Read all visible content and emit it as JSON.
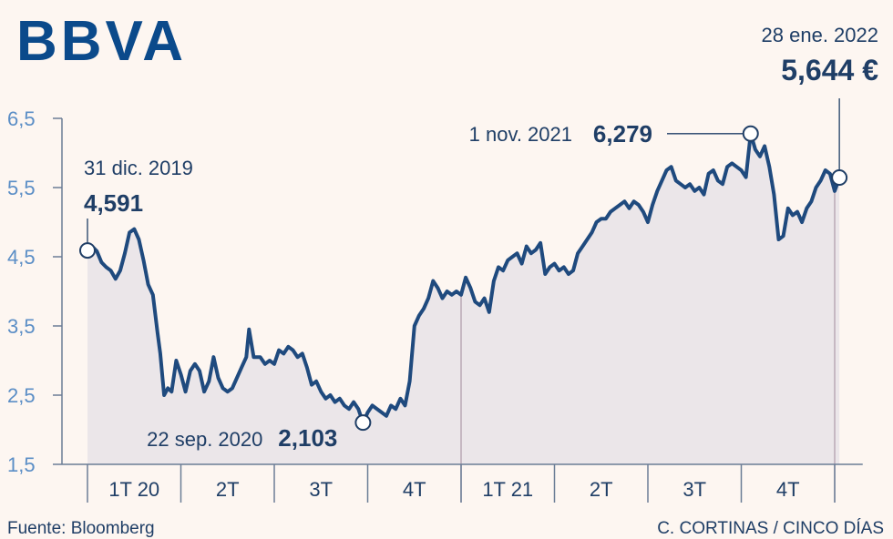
{
  "brand": {
    "logo_text": "BBVA",
    "color": "#0b4a8b"
  },
  "footer": {
    "source": "Fuente: Bloomberg",
    "credit": "C. CORTINAS / CINCO DÍAS"
  },
  "colors": {
    "line": "#1f4a7e",
    "area": "#e7e3e8",
    "axis_tick_labels": "#5b8ec6",
    "text": "#1f3e66",
    "background": "#fdf6f1"
  },
  "chart_data": {
    "type": "line",
    "title": "",
    "xlabel": "",
    "ylabel": "",
    "ylim": [
      1.5,
      6.5
    ],
    "y_ticks": [
      "6,5",
      "5,5",
      "4,5",
      "3,5",
      "2,5",
      "1,5"
    ],
    "y_tick_values": [
      6.5,
      5.5,
      4.5,
      3.5,
      2.5,
      1.5
    ],
    "x_categories": [
      "1T 20",
      "2T",
      "3T",
      "4T",
      "1T 21",
      "2T",
      "3T",
      "4T"
    ],
    "x_range_quarters": [
      0,
      8.1
    ],
    "area_fill": true,
    "grid": false,
    "series": [
      {
        "values": [
          [
            0.0,
            4.59
          ],
          [
            0.05,
            4.65
          ],
          [
            0.1,
            4.58
          ],
          [
            0.15,
            4.42
          ],
          [
            0.2,
            4.35
          ],
          [
            0.25,
            4.3
          ],
          [
            0.3,
            4.18
          ],
          [
            0.35,
            4.3
          ],
          [
            0.4,
            4.55
          ],
          [
            0.45,
            4.85
          ],
          [
            0.5,
            4.9
          ],
          [
            0.55,
            4.75
          ],
          [
            0.6,
            4.45
          ],
          [
            0.65,
            4.1
          ],
          [
            0.7,
            3.95
          ],
          [
            0.75,
            3.4
          ],
          [
            0.78,
            3.1
          ],
          [
            0.82,
            2.5
          ],
          [
            0.86,
            2.6
          ],
          [
            0.9,
            2.55
          ],
          [
            0.95,
            3.0
          ],
          [
            1.0,
            2.8
          ],
          [
            1.05,
            2.55
          ],
          [
            1.1,
            2.85
          ],
          [
            1.15,
            2.95
          ],
          [
            1.2,
            2.85
          ],
          [
            1.25,
            2.55
          ],
          [
            1.3,
            2.7
          ],
          [
            1.35,
            3.05
          ],
          [
            1.4,
            2.75
          ],
          [
            1.45,
            2.6
          ],
          [
            1.5,
            2.55
          ],
          [
            1.55,
            2.6
          ],
          [
            1.6,
            2.75
          ],
          [
            1.65,
            2.9
          ],
          [
            1.7,
            3.05
          ],
          [
            1.73,
            3.45
          ],
          [
            1.78,
            3.05
          ],
          [
            1.85,
            3.05
          ],
          [
            1.9,
            2.95
          ],
          [
            1.95,
            3.0
          ],
          [
            2.0,
            2.95
          ],
          [
            2.05,
            3.15
          ],
          [
            2.1,
            3.1
          ],
          [
            2.15,
            3.2
          ],
          [
            2.2,
            3.15
          ],
          [
            2.25,
            3.05
          ],
          [
            2.3,
            3.1
          ],
          [
            2.35,
            2.9
          ],
          [
            2.4,
            2.65
          ],
          [
            2.45,
            2.7
          ],
          [
            2.5,
            2.55
          ],
          [
            2.55,
            2.45
          ],
          [
            2.6,
            2.5
          ],
          [
            2.65,
            2.4
          ],
          [
            2.7,
            2.45
          ],
          [
            2.75,
            2.35
          ],
          [
            2.8,
            2.3
          ],
          [
            2.85,
            2.4
          ],
          [
            2.9,
            2.3
          ],
          [
            2.95,
            2.1
          ],
          [
            3.0,
            2.25
          ],
          [
            3.05,
            2.35
          ],
          [
            3.1,
            2.3
          ],
          [
            3.15,
            2.25
          ],
          [
            3.2,
            2.2
          ],
          [
            3.25,
            2.35
          ],
          [
            3.3,
            2.3
          ],
          [
            3.35,
            2.45
          ],
          [
            3.4,
            2.35
          ],
          [
            3.45,
            2.7
          ],
          [
            3.5,
            3.5
          ],
          [
            3.55,
            3.65
          ],
          [
            3.6,
            3.75
          ],
          [
            3.65,
            3.9
          ],
          [
            3.7,
            4.15
          ],
          [
            3.75,
            4.05
          ],
          [
            3.8,
            3.9
          ],
          [
            3.85,
            4.0
          ],
          [
            3.9,
            3.95
          ],
          [
            3.95,
            4.0
          ],
          [
            4.0,
            3.95
          ],
          [
            4.05,
            4.2
          ],
          [
            4.1,
            4.05
          ],
          [
            4.15,
            3.85
          ],
          [
            4.2,
            3.8
          ],
          [
            4.25,
            3.9
          ],
          [
            4.3,
            3.7
          ],
          [
            4.35,
            4.15
          ],
          [
            4.4,
            4.35
          ],
          [
            4.45,
            4.3
          ],
          [
            4.5,
            4.45
          ],
          [
            4.55,
            4.5
          ],
          [
            4.6,
            4.55
          ],
          [
            4.65,
            4.4
          ],
          [
            4.7,
            4.65
          ],
          [
            4.75,
            4.55
          ],
          [
            4.8,
            4.6
          ],
          [
            4.85,
            4.7
          ],
          [
            4.9,
            4.25
          ],
          [
            4.95,
            4.35
          ],
          [
            5.0,
            4.4
          ],
          [
            5.05,
            4.3
          ],
          [
            5.1,
            4.35
          ],
          [
            5.15,
            4.25
          ],
          [
            5.2,
            4.3
          ],
          [
            5.25,
            4.55
          ],
          [
            5.3,
            4.65
          ],
          [
            5.35,
            4.75
          ],
          [
            5.4,
            4.85
          ],
          [
            5.45,
            5.0
          ],
          [
            5.5,
            5.05
          ],
          [
            5.55,
            5.05
          ],
          [
            5.6,
            5.15
          ],
          [
            5.65,
            5.2
          ],
          [
            5.7,
            5.25
          ],
          [
            5.75,
            5.3
          ],
          [
            5.8,
            5.2
          ],
          [
            5.85,
            5.3
          ],
          [
            5.9,
            5.25
          ],
          [
            5.95,
            5.15
          ],
          [
            6.0,
            5.0
          ],
          [
            6.05,
            5.25
          ],
          [
            6.1,
            5.45
          ],
          [
            6.15,
            5.6
          ],
          [
            6.2,
            5.75
          ],
          [
            6.25,
            5.8
          ],
          [
            6.3,
            5.6
          ],
          [
            6.35,
            5.55
          ],
          [
            6.4,
            5.5
          ],
          [
            6.45,
            5.55
          ],
          [
            6.5,
            5.45
          ],
          [
            6.55,
            5.5
          ],
          [
            6.6,
            5.4
          ],
          [
            6.65,
            5.7
          ],
          [
            6.7,
            5.75
          ],
          [
            6.75,
            5.6
          ],
          [
            6.8,
            5.55
          ],
          [
            6.85,
            5.8
          ],
          [
            6.9,
            5.85
          ],
          [
            6.95,
            5.8
          ],
          [
            7.0,
            5.75
          ],
          [
            7.05,
            5.65
          ],
          [
            7.1,
            6.28
          ],
          [
            7.15,
            6.05
          ],
          [
            7.2,
            5.95
          ],
          [
            7.25,
            6.1
          ],
          [
            7.3,
            5.8
          ],
          [
            7.35,
            5.4
          ],
          [
            7.4,
            4.75
          ],
          [
            7.45,
            4.8
          ],
          [
            7.5,
            5.2
          ],
          [
            7.55,
            5.1
          ],
          [
            7.6,
            5.15
          ],
          [
            7.65,
            5.0
          ],
          [
            7.7,
            5.2
          ],
          [
            7.75,
            5.3
          ],
          [
            7.8,
            5.5
          ],
          [
            7.85,
            5.6
          ],
          [
            7.9,
            5.75
          ],
          [
            7.95,
            5.7
          ],
          [
            8.0,
            5.45
          ],
          [
            8.05,
            5.64
          ]
        ]
      }
    ],
    "annotations": [
      {
        "date": "31 dic. 2019",
        "value": "4,591",
        "x": 0.0,
        "y": 4.591
      },
      {
        "date": "22 sep. 2020",
        "value": "2,103",
        "x": 2.95,
        "y": 2.103
      },
      {
        "date": "1 nov. 2021",
        "value": "6,279",
        "x": 7.1,
        "y": 6.279
      },
      {
        "date": "28 ene. 2022",
        "value": "5,644 €",
        "x": 8.05,
        "y": 5.644
      }
    ],
    "quarter_dividers": [
      4,
      8
    ]
  }
}
